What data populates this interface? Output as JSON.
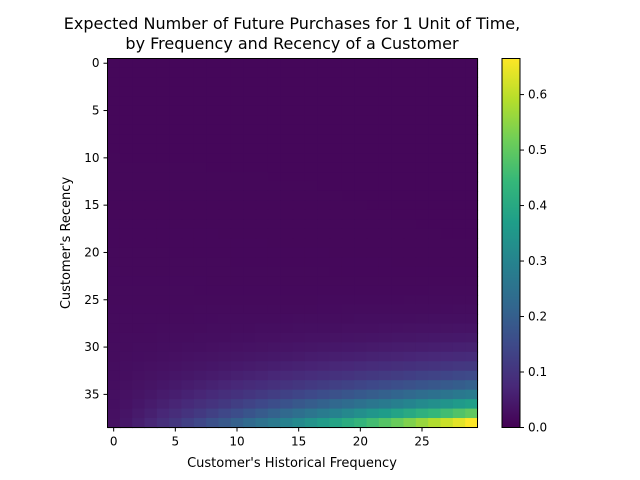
{
  "chart_data": {
    "type": "heatmap",
    "title": "Expected Number of Future Purchases for 1 Unit of Time,\nby Frequency and Recency of a Customer",
    "xlabel": "Customer's Historical Frequency",
    "ylabel": "Customer's Recency",
    "x_ticks": [
      0,
      5,
      10,
      15,
      20,
      25
    ],
    "y_ticks": [
      0,
      5,
      10,
      15,
      20,
      25,
      30,
      35
    ],
    "x_range": [
      0,
      29
    ],
    "y_range": [
      0,
      38
    ],
    "colormap": "viridis",
    "colorbar": {
      "min": 0.0,
      "max": 0.665,
      "ticks": [
        "0.0",
        "0.1",
        "0.2",
        "0.3",
        "0.4",
        "0.5",
        "0.6"
      ]
    },
    "value_model": "Values near 0 across most of the grid; rise toward high recency and high frequency; maximum about 0.66 at frequency 29, recency 38.",
    "max_value": 0.665,
    "colors": {
      "viridis": [
        "#440154",
        "#482878",
        "#3e4989",
        "#31688e",
        "#26828e",
        "#1f9e89",
        "#35b779",
        "#6ece58",
        "#b5de2b",
        "#fde725"
      ]
    }
  }
}
